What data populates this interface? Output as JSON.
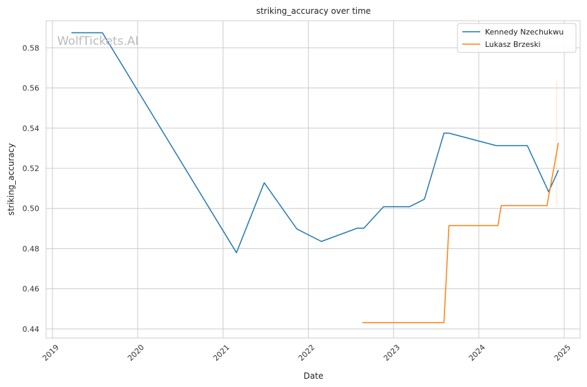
{
  "watermark": "WolfTickets.AI",
  "chart_data": {
    "type": "line",
    "title": "striking_accuracy over time",
    "xlabel": "Date",
    "ylabel": "striking_accuracy",
    "x_ticks": [
      "2019",
      "2020",
      "2021",
      "2022",
      "2023",
      "2024",
      "2025"
    ],
    "y_ticks": [
      "0.44",
      "0.46",
      "0.48",
      "0.50",
      "0.52",
      "0.54",
      "0.56",
      "0.58"
    ],
    "xlim": [
      "2018-12-05",
      "2025-03-10"
    ],
    "ylim": [
      0.4355,
      0.5935
    ],
    "grid": true,
    "legend_position": "top-right",
    "series": [
      {
        "name": "Kennedy Nzechukwu",
        "color": "#1f77b4",
        "points": [
          [
            "2019-03-23",
            0.5875
          ],
          [
            "2019-08-03",
            0.5875
          ],
          [
            "2021-02-27",
            0.478
          ],
          [
            "2021-06-26",
            0.5128
          ],
          [
            "2021-11-13",
            0.4898
          ],
          [
            "2022-02-26",
            0.4836
          ],
          [
            "2022-07-30",
            0.4902
          ],
          [
            "2022-08-27",
            0.4902
          ],
          [
            "2022-11-19",
            0.5009
          ],
          [
            "2023-03-11",
            0.5009
          ],
          [
            "2023-05-13",
            0.5046
          ],
          [
            "2023-08-05",
            0.5375
          ],
          [
            "2023-08-26",
            0.5375
          ],
          [
            "2024-03-16",
            0.5313
          ],
          [
            "2024-07-27",
            0.5313
          ],
          [
            "2024-10-26",
            0.5083
          ],
          [
            "2024-12-07",
            0.5191
          ]
        ]
      },
      {
        "name": "Lukasz Brzeski",
        "color": "#ff7f0e",
        "points": [
          [
            "2022-08-20",
            0.4432
          ],
          [
            "2023-08-05",
            0.4432
          ],
          [
            "2023-08-26",
            0.4915
          ],
          [
            "2024-03-23",
            0.4915
          ],
          [
            "2024-04-06",
            0.5014
          ],
          [
            "2024-10-19",
            0.5014
          ],
          [
            "2024-12-07",
            0.5327
          ]
        ]
      }
    ]
  }
}
